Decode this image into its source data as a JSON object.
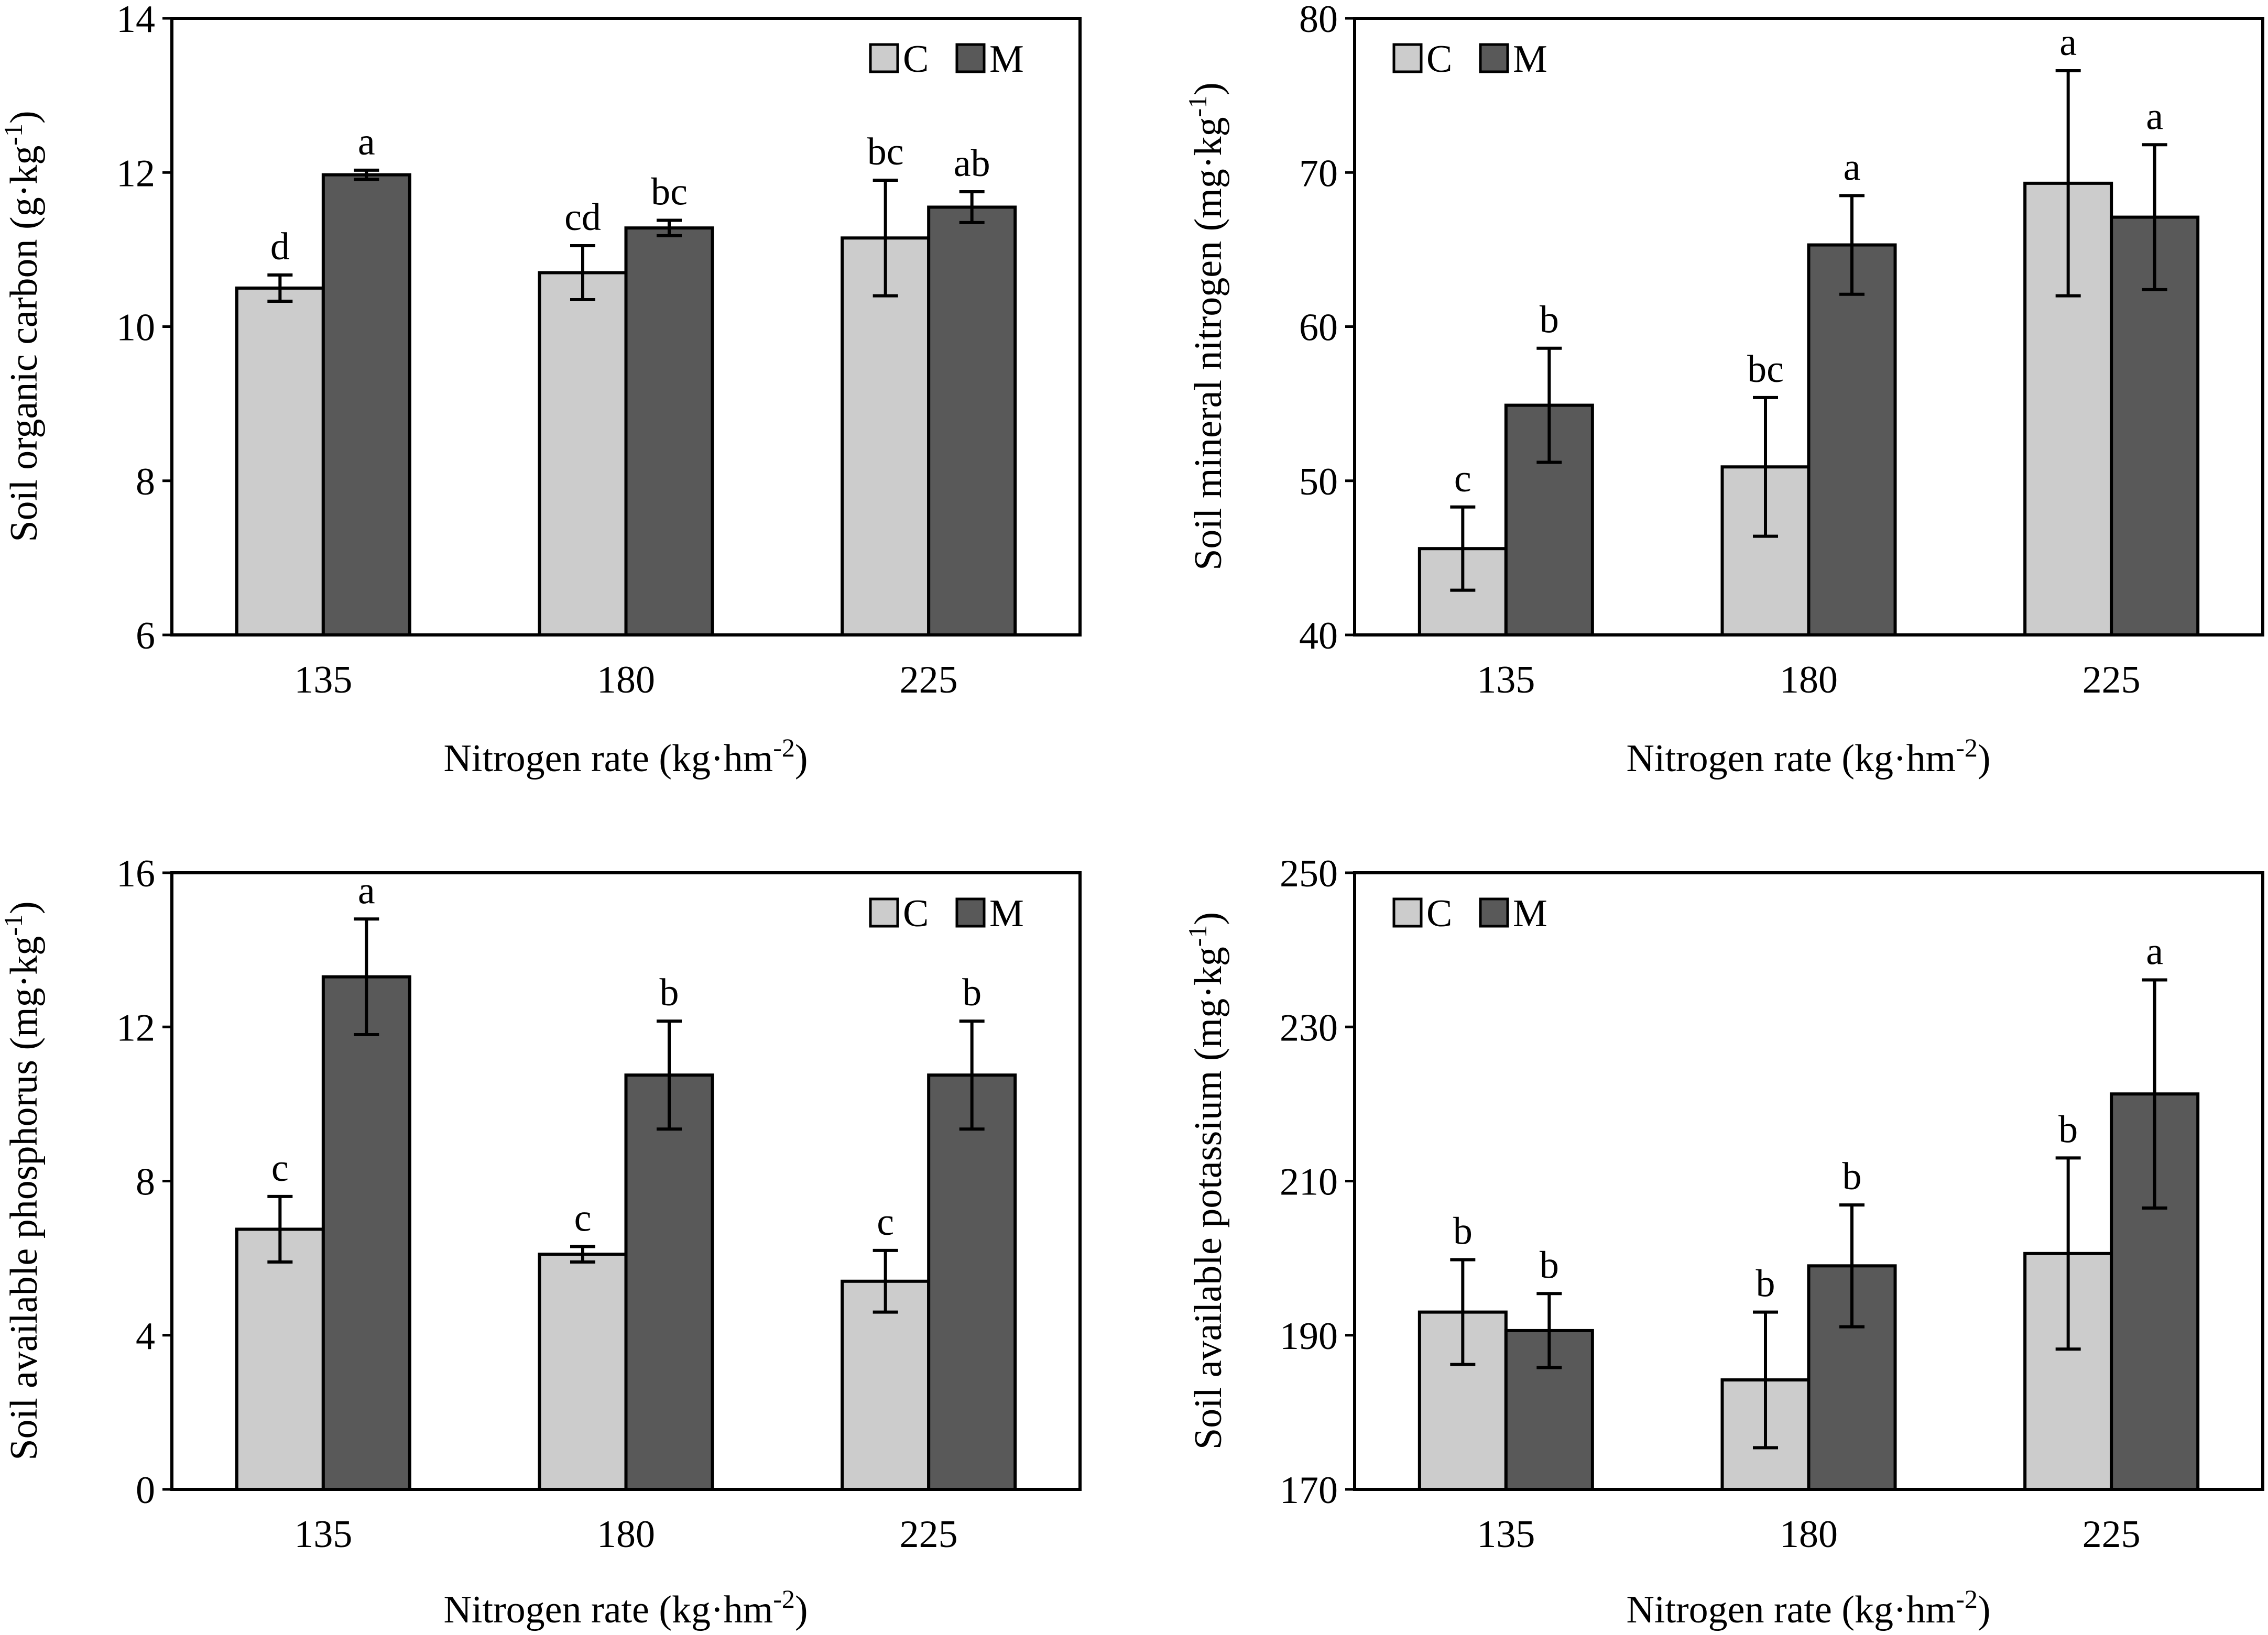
{
  "figure": {
    "series_legend": [
      {
        "key": "C",
        "label": "C",
        "color": "#cccccc"
      },
      {
        "key": "M",
        "label": "M",
        "color": "#595959"
      }
    ]
  },
  "chart_data": [
    {
      "type": "bar",
      "id": "soc",
      "title": "",
      "xlabel": "Nitrogen rate (kg·hm",
      "xlabel_sup": "-2",
      "xlabel_end": ")",
      "ylabel": "Soil organic carbon (g·kg",
      "ylabel_sup": "-1",
      "ylabel_end": ")",
      "categories": [
        "135",
        "180",
        "225"
      ],
      "ylim": [
        6,
        14
      ],
      "yticks": [
        6,
        8,
        10,
        12,
        14
      ],
      "legend_position": "top-right",
      "series": [
        {
          "name": "C",
          "values": [
            10.5,
            10.7,
            11.15
          ],
          "errors": [
            0.17,
            0.35,
            0.75
          ],
          "labels": [
            "d",
            "cd",
            "bc"
          ]
        },
        {
          "name": "M",
          "values": [
            11.97,
            11.28,
            11.55
          ],
          "errors": [
            0.06,
            0.1,
            0.2
          ],
          "labels": [
            "a",
            "bc",
            "ab"
          ]
        }
      ]
    },
    {
      "type": "bar",
      "id": "smn",
      "title": "",
      "xlabel": "Nitrogen rate (kg·hm",
      "xlabel_sup": "-2",
      "xlabel_end": ")",
      "ylabel": "Soil mineral nitrogen (mg·kg",
      "ylabel_sup": "-1",
      "ylabel_end": ")",
      "categories": [
        "135",
        "180",
        "225"
      ],
      "ylim": [
        40,
        80
      ],
      "yticks": [
        40,
        50,
        60,
        70,
        80
      ],
      "legend_position": "top-left",
      "series": [
        {
          "name": "C",
          "values": [
            45.6,
            50.9,
            69.3
          ],
          "errors": [
            2.7,
            4.5,
            7.3
          ],
          "labels": [
            "c",
            "bc",
            "a"
          ]
        },
        {
          "name": "M",
          "values": [
            54.9,
            65.3,
            67.1
          ],
          "errors": [
            3.7,
            3.2,
            4.7
          ],
          "labels": [
            "b",
            "a",
            "a"
          ]
        }
      ]
    },
    {
      "type": "bar",
      "id": "sap",
      "title": "",
      "xlabel": "Nitrogen rate (kg·hm",
      "xlabel_sup": "-2",
      "xlabel_end": ")",
      "ylabel": "Soil available phosphorus (mg·kg",
      "ylabel_sup": "-1",
      "ylabel_end": ")",
      "categories": [
        "135",
        "180",
        "225"
      ],
      "ylim": [
        0,
        16
      ],
      "yticks": [
        0,
        4,
        8,
        12,
        16
      ],
      "legend_position": "top-right",
      "series": [
        {
          "name": "C",
          "values": [
            6.75,
            6.1,
            5.4
          ],
          "errors": [
            0.85,
            0.2,
            0.8
          ],
          "labels": [
            "c",
            "c",
            "c"
          ]
        },
        {
          "name": "M",
          "values": [
            13.3,
            10.75,
            10.75
          ],
          "errors": [
            1.5,
            1.4,
            1.4
          ],
          "labels": [
            "a",
            "b",
            "b"
          ]
        }
      ]
    },
    {
      "type": "bar",
      "id": "sak",
      "title": "",
      "xlabel": "Nitrogen rate (kg·hm",
      "xlabel_sup": "-2",
      "xlabel_end": ")",
      "ylabel": "Soil available potassium (mg·kg",
      "ylabel_sup": "-1",
      "ylabel_end": ")",
      "categories": [
        "135",
        "180",
        "225"
      ],
      "ylim": [
        170,
        250
      ],
      "yticks": [
        170,
        190,
        210,
        230,
        250
      ],
      "legend_position": "top-left",
      "series": [
        {
          "name": "C",
          "values": [
            193,
            184.2,
            200.6
          ],
          "errors": [
            6.8,
            8.8,
            12.4
          ],
          "labels": [
            "b",
            "b",
            "b"
          ]
        },
        {
          "name": "M",
          "values": [
            190.6,
            199,
            221.3
          ],
          "errors": [
            4.8,
            7.9,
            14.8
          ],
          "labels": [
            "b",
            "b",
            "a"
          ]
        }
      ]
    }
  ]
}
